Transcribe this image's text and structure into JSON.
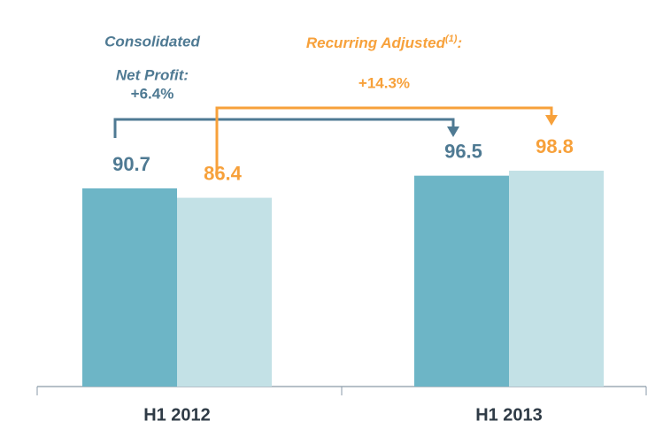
{
  "chart_data": {
    "type": "bar",
    "categories": [
      "H1 2012",
      "H1 2013"
    ],
    "series": [
      {
        "name": "Consolidated Net Profit",
        "color": "#6db5c6",
        "label_color": "#4f7a93",
        "values": [
          90.7,
          96.5
        ]
      },
      {
        "name": "Recurring Adjusted",
        "color": "#c3e1e6",
        "label_color": "#f7a13b",
        "values": [
          86.4,
          98.8
        ]
      }
    ],
    "ylim": [
      0,
      100
    ],
    "annotations": [
      {
        "lines": [
          "Consolidated",
          "Net Profit:"
        ],
        "change": "+6.4%",
        "color": "#4f7a93"
      },
      {
        "text": "Recurring Adjusted",
        "superscript": "(1)",
        "suffix": ":",
        "change": "+14.3%",
        "color": "#f7a13b"
      }
    ]
  }
}
